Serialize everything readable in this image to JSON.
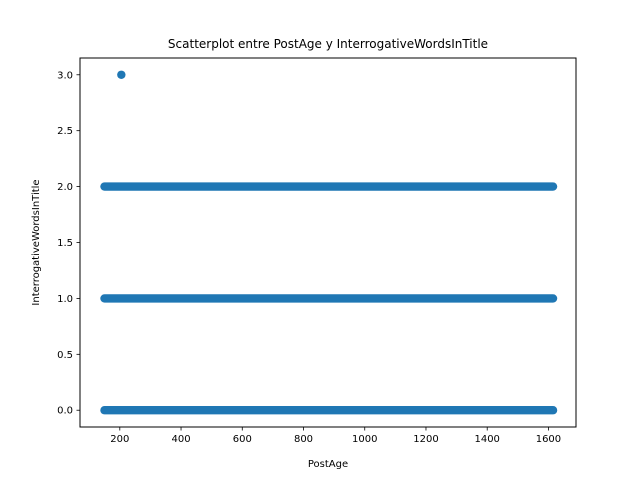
{
  "chart_data": {
    "type": "scatter",
    "title": "Scatterplot entre PostAge y InterrogativeWordsInTitle",
    "xlabel": "PostAge",
    "ylabel": "InterrogativeWordsInTitle",
    "xlim": [
      70,
      1690
    ],
    "ylim": [
      -0.15,
      3.15
    ],
    "xticks": [
      200,
      400,
      600,
      800,
      1000,
      1200,
      1400,
      1600
    ],
    "yticks": [
      0.0,
      0.5,
      1.0,
      1.5,
      2.0,
      2.5,
      3.0
    ],
    "xtick_labels": [
      "200",
      "400",
      "600",
      "800",
      "1000",
      "1200",
      "1400",
      "1600"
    ],
    "ytick_labels": [
      "0.0",
      "0.5",
      "1.0",
      "1.5",
      "2.0",
      "2.5",
      "3.0"
    ],
    "grid": false,
    "marker_color": "#1f77b4",
    "bands": [
      {
        "y": 0,
        "x_min": 150,
        "x_max": 1615
      },
      {
        "y": 1,
        "x_min": 150,
        "x_max": 1615
      },
      {
        "y": 2,
        "x_min": 150,
        "x_max": 1615
      }
    ],
    "points": [
      {
        "x": 205,
        "y": 3
      }
    ]
  }
}
